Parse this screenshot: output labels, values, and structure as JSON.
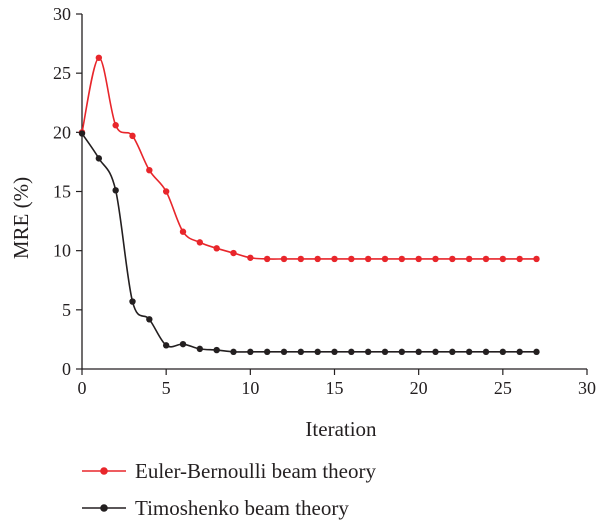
{
  "chart_data": {
    "type": "line",
    "title": "",
    "xlabel": "Iteration",
    "ylabel": "MRE (%)",
    "xlim": [
      0,
      30
    ],
    "ylim": [
      0,
      30
    ],
    "xticks": [
      0,
      5,
      10,
      15,
      20,
      25,
      30
    ],
    "yticks": [
      0,
      5,
      10,
      15,
      20,
      25,
      30
    ],
    "grid": false,
    "legend_position": "bottom-left",
    "series": [
      {
        "name": "Euler-Bernoulli beam theory",
        "color": "#e8262b",
        "x": [
          0,
          1,
          2,
          3,
          4,
          5,
          6,
          7,
          8,
          9,
          10,
          11,
          12,
          13,
          14,
          15,
          16,
          17,
          18,
          19,
          20,
          21,
          22,
          23,
          24,
          25,
          26,
          27
        ],
        "y": [
          20.0,
          26.3,
          20.6,
          19.7,
          16.8,
          15.0,
          11.6,
          10.7,
          10.2,
          9.8,
          9.4,
          9.3,
          9.3,
          9.3,
          9.3,
          9.3,
          9.3,
          9.3,
          9.3,
          9.3,
          9.3,
          9.3,
          9.3,
          9.3,
          9.3,
          9.3,
          9.3,
          9.3
        ]
      },
      {
        "name": "Timoshenko beam theory",
        "color": "#231f20",
        "x": [
          0,
          1,
          2,
          3,
          4,
          5,
          6,
          7,
          8,
          9,
          10,
          11,
          12,
          13,
          14,
          15,
          16,
          17,
          18,
          19,
          20,
          21,
          22,
          23,
          24,
          25,
          26,
          27
        ],
        "y": [
          19.9,
          17.8,
          15.1,
          5.7,
          4.2,
          2.0,
          2.1,
          1.7,
          1.6,
          1.45,
          1.45,
          1.45,
          1.45,
          1.45,
          1.45,
          1.45,
          1.45,
          1.45,
          1.45,
          1.45,
          1.45,
          1.45,
          1.45,
          1.45,
          1.45,
          1.45,
          1.45,
          1.45
        ]
      }
    ]
  }
}
